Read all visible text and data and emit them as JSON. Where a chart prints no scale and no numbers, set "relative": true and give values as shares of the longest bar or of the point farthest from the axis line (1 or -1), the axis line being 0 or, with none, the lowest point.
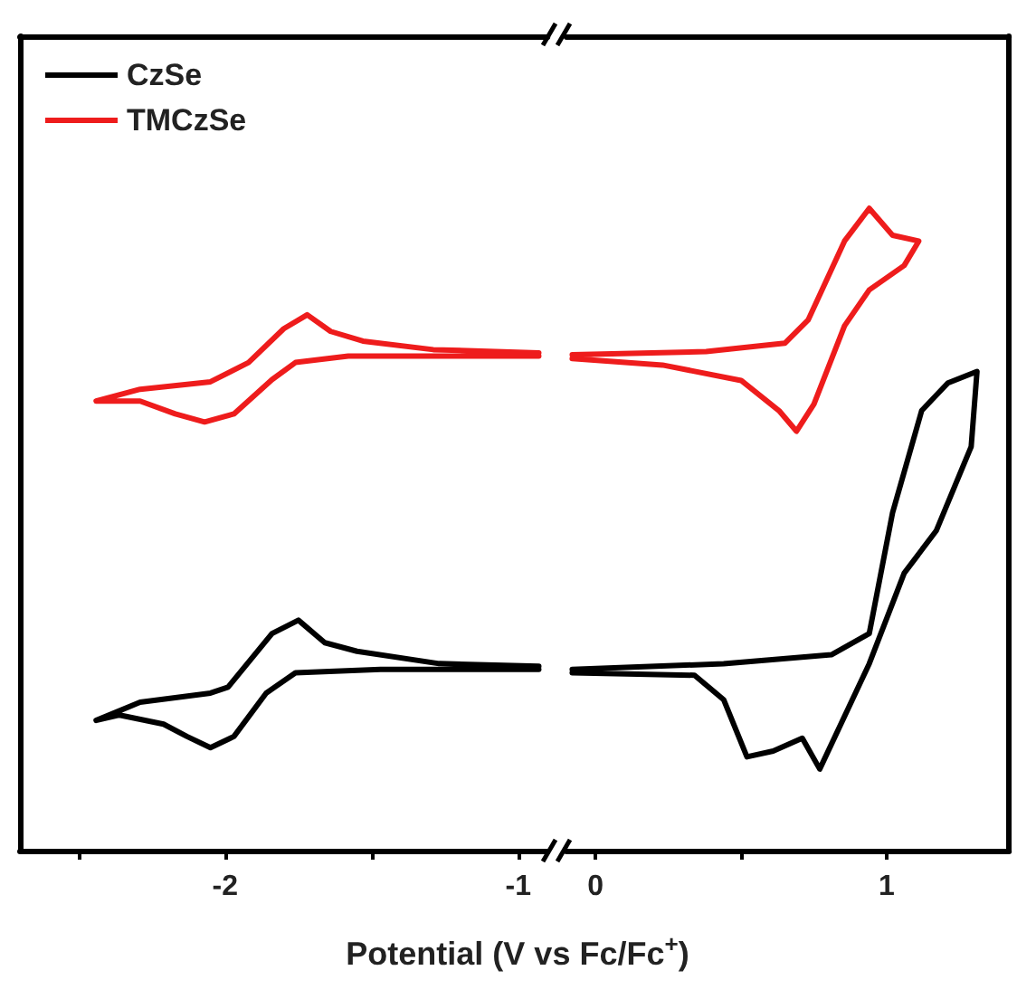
{
  "chart_data": [
    {
      "type": "line",
      "relative": true,
      "xlabel": "Potential (V vs Fc/Fc$^{+}$)",
      "xlim": [
        -2.7,
        -0.9
      ],
      "xticks": [
        {
          "value": -2.5,
          "label": null
        },
        -2,
        {
          "value": -1.5,
          "label": null
        },
        -1
      ],
      "tick_labels": "x",
      "legend": "top left",
      "line_style": "solid",
      "series": [
        {
          "name": "CzSe",
          "color": "#000000",
          "x": [
            -0.93,
            -1.27,
            -1.55,
            -1.66,
            -1.75,
            -1.84,
            -1.99,
            -2.05,
            -2.29,
            -2.44,
            -2.36,
            -2.21,
            -2.13,
            -2.05,
            -1.97,
            -1.86,
            -1.76,
            -1.47,
            -0.93
          ],
          "values": [
            0.344,
            0.349,
            0.372,
            0.388,
            0.43,
            0.405,
            0.305,
            0.294,
            0.277,
            0.243,
            0.253,
            0.236,
            0.213,
            0.192,
            0.213,
            0.294,
            0.332,
            0.338,
            0.338
          ]
        },
        {
          "name": "TMCzSe",
          "color": "#ee1c1c",
          "x": [
            -0.93,
            -1.29,
            -1.53,
            -1.64,
            -1.72,
            -1.8,
            -1.92,
            -2.05,
            -2.29,
            -2.44,
            -2.29,
            -2.17,
            -2.07,
            -1.97,
            -1.84,
            -1.76,
            -1.58,
            -0.93
          ],
          "values": [
            0.929,
            0.935,
            0.951,
            0.969,
            1.0,
            0.974,
            0.911,
            0.875,
            0.861,
            0.839,
            0.839,
            0.815,
            0.8,
            0.815,
            0.879,
            0.911,
            0.923,
            0.923
          ]
        }
      ]
    },
    {
      "type": "line",
      "relative": true,
      "xlim": [
        -0.1,
        1.42
      ],
      "xticks": [
        0,
        {
          "value": 0.5,
          "label": null
        },
        1
      ],
      "tick_labels": "x",
      "line_style": "solid",
      "series": [
        {
          "color": "#000000",
          "x": [
            -0.08,
            0.44,
            0.81,
            0.94,
            1.02,
            1.12,
            1.21,
            1.31,
            1.29,
            1.17,
            1.06,
            0.94,
            0.77,
            0.71,
            0.61,
            0.52,
            0.44,
            0.34,
            -0.08
          ],
          "values": [
            0.282,
            0.291,
            0.305,
            0.338,
            0.526,
            0.685,
            0.728,
            0.746,
            0.629,
            0.498,
            0.432,
            0.291,
            0.127,
            0.175,
            0.155,
            0.146,
            0.235,
            0.273,
            0.277
          ]
        },
        {
          "color": "#ee1c1c",
          "x": [
            -0.08,
            0.38,
            0.65,
            0.73,
            0.855,
            0.94,
            1.02,
            1.11,
            1.06,
            0.94,
            0.855,
            0.75,
            0.69,
            0.63,
            0.5,
            0.23,
            -0.08
          ],
          "values": [
            0.772,
            0.777,
            0.79,
            0.826,
            0.949,
            1.0,
            0.958,
            0.949,
            0.911,
            0.873,
            0.817,
            0.695,
            0.653,
            0.685,
            0.732,
            0.756,
            0.766
          ]
        }
      ]
    }
  ]
}
